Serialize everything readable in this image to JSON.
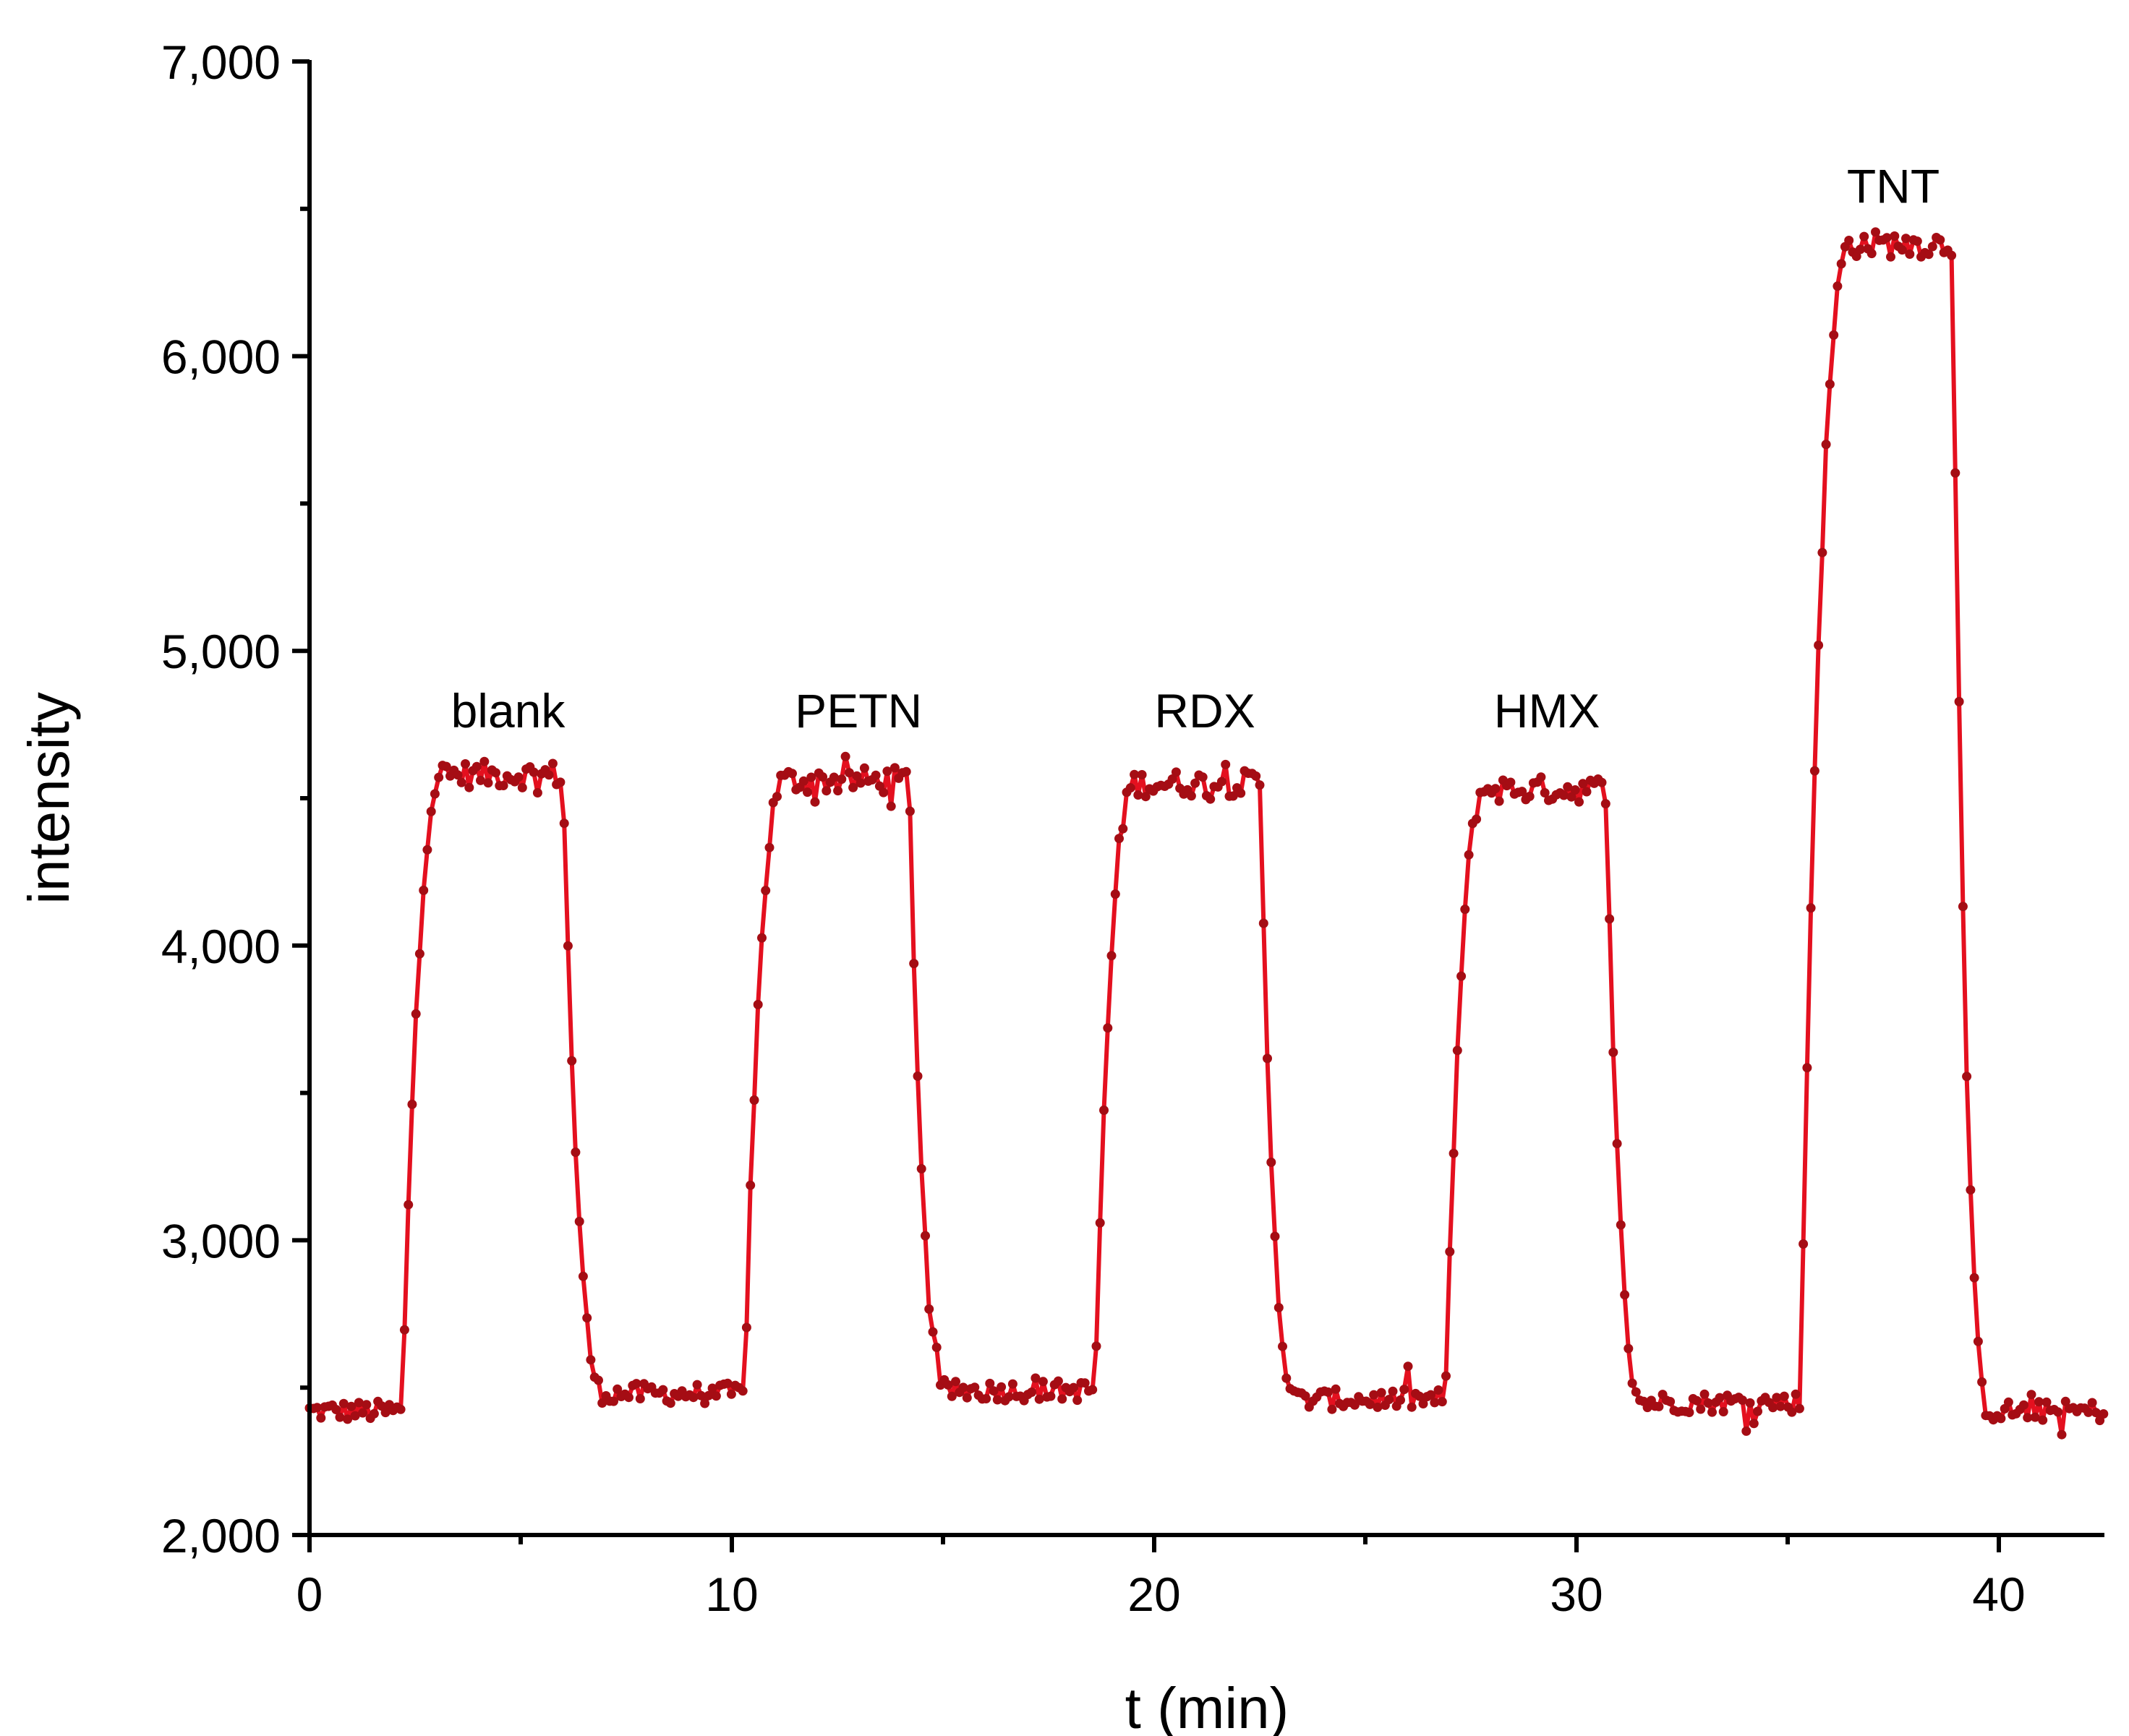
{
  "colors": {
    "line": "#e4101f",
    "marker": "#a50d14",
    "axis": "#000000",
    "background": "#ffffff"
  },
  "chart_data": {
    "type": "line",
    "title": "",
    "xlabel": "t (min)",
    "ylabel": "intensity",
    "xlim": [
      0,
      42.5
    ],
    "ylim": [
      2000,
      7000
    ],
    "x_ticks": [
      0,
      10,
      20,
      30,
      40
    ],
    "x_tick_labels": [
      "0",
      "10",
      "20",
      "30",
      "40"
    ],
    "x_minor_ticks": [
      5,
      15,
      25,
      35
    ],
    "y_ticks": [
      2000,
      3000,
      4000,
      5000,
      6000,
      7000
    ],
    "y_tick_labels": [
      "2,000",
      "3,000",
      "4,000",
      "5,000",
      "6,000",
      "7,000"
    ],
    "y_minor_ticks": [
      2500,
      3500,
      4500,
      5500,
      6500
    ],
    "grid": false,
    "legend": "none",
    "series": [
      {
        "name": "intensity",
        "style": "line+markers",
        "segments": [
          {
            "start": 0.0,
            "end": 2.2,
            "level": 2420,
            "shape": "flat"
          },
          {
            "start": 2.2,
            "end": 6.0,
            "level": 4580,
            "shape": "pulse",
            "rise": 0.95,
            "fall": 1.0
          },
          {
            "start": 7.0,
            "end": 10.3,
            "level": 2480,
            "shape": "flat"
          },
          {
            "start": 10.3,
            "end": 14.2,
            "level": 4560,
            "shape": "pulse",
            "rise": 0.95,
            "fall": 1.0
          },
          {
            "start": 15.1,
            "end": 18.6,
            "level": 2490,
            "shape": "flat"
          },
          {
            "start": 18.6,
            "end": 22.5,
            "level": 4550,
            "shape": "pulse",
            "rise": 0.95,
            "fall": 1.0
          },
          {
            "start": 23.4,
            "end": 26.9,
            "level": 2460,
            "shape": "flat"
          },
          {
            "start": 26.9,
            "end": 30.7,
            "level": 4530,
            "shape": "pulse",
            "rise": 0.95,
            "fall": 1.0
          },
          {
            "start": 31.6,
            "end": 35.3,
            "level": 2450,
            "shape": "flat"
          },
          {
            "start": 35.3,
            "end": 38.9,
            "level": 6380,
            "shape": "pulse",
            "rise": 1.2,
            "fall": 1.0
          },
          {
            "start": 39.8,
            "end": 42.5,
            "level": 2420,
            "shape": "flat"
          }
        ]
      }
    ],
    "annotations": [
      {
        "text": "blank",
        "x": 4.7,
        "y": 4740
      },
      {
        "text": "PETN",
        "x": 13.0,
        "y": 4740
      },
      {
        "text": "RDX",
        "x": 21.2,
        "y": 4740
      },
      {
        "text": "HMX",
        "x": 29.3,
        "y": 4740
      },
      {
        "text": "TNT",
        "x": 37.5,
        "y": 6520
      }
    ]
  }
}
